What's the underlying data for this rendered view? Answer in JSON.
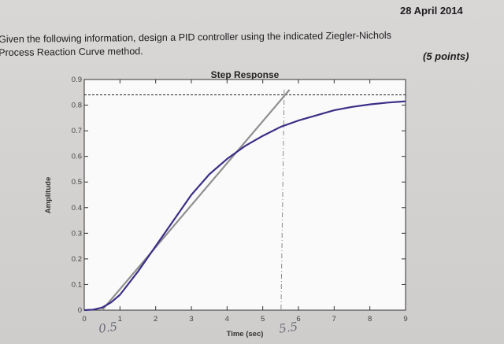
{
  "header": {
    "date": "28 April 2014",
    "instruction_line1": "Given the following information, design a PID controller using the indicated Ziegler-Nichols",
    "instruction_line2": "Process Reaction Curve method.",
    "points": "(5 points)"
  },
  "chart_data": {
    "type": "line",
    "title": "Step Response",
    "xlabel": "Time (sec)",
    "ylabel": "Amplitude",
    "xlim": [
      0,
      9
    ],
    "ylim": [
      0,
      0.9
    ],
    "xticks": [
      0,
      1,
      2,
      3,
      4,
      5,
      6,
      7,
      8,
      9
    ],
    "yticks": [
      0,
      0.1,
      0.2,
      0.3,
      0.4,
      0.5,
      0.6,
      0.7,
      0.8,
      0.9
    ],
    "xtick_labels": [
      "0",
      "1",
      "2",
      "3",
      "4",
      "5",
      "6",
      "7",
      "8",
      "9"
    ],
    "ytick_labels": [
      "0",
      "0.1",
      "0.2",
      "0.3",
      "0.4",
      "0.5",
      "0.6",
      "0.7",
      "0.8",
      "0.9"
    ],
    "grid": false,
    "series": [
      {
        "color": "#3a2f86",
        "x": [
          0,
          0.25,
          0.5,
          0.75,
          1,
          1.5,
          2,
          2.5,
          3,
          3.5,
          4,
          4.5,
          5,
          5.5,
          6,
          6.5,
          7,
          7.5,
          8,
          8.5,
          9
        ],
        "y": [
          0,
          0.002,
          0.01,
          0.03,
          0.06,
          0.15,
          0.25,
          0.35,
          0.45,
          0.53,
          0.59,
          0.64,
          0.68,
          0.715,
          0.74,
          0.76,
          0.78,
          0.793,
          0.803,
          0.81,
          0.815
        ]
      }
    ],
    "annotations": {
      "final_value": 0.84,
      "tangent_line": {
        "x": [
          0.5,
          5.75
        ],
        "y": [
          0,
          0.86
        ]
      },
      "vertical_marker_x": 5.6,
      "handwritten_labels": [
        {
          "text": "0.5",
          "x": 0.55
        },
        {
          "text": "5.5",
          "x": 5.6
        }
      ]
    }
  }
}
